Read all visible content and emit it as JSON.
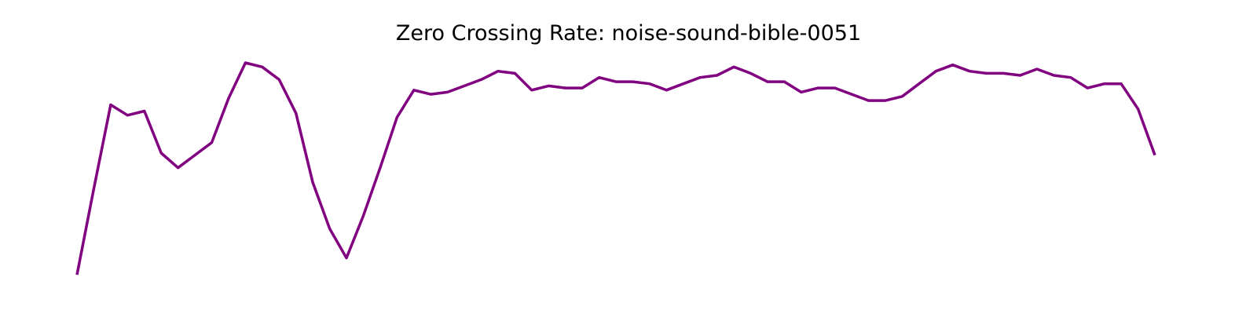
{
  "chart_data": {
    "type": "line",
    "title": "Zero Crossing Rate: noise-sound-bible-0051",
    "xlabel": "",
    "ylabel": "",
    "axes_visible": false,
    "grid": false,
    "legend": "none",
    "series": [
      {
        "color": "#800080",
        "values": [
          0.084,
          0.125,
          0.165,
          0.16,
          0.162,
          0.142,
          0.135,
          0.141,
          0.147,
          0.168,
          0.185,
          0.183,
          0.177,
          0.161,
          0.128,
          0.106,
          0.092,
          0.112,
          0.135,
          0.159,
          0.172,
          0.17,
          0.171,
          0.174,
          0.177,
          0.181,
          0.18,
          0.172,
          0.174,
          0.173,
          0.173,
          0.178,
          0.176,
          0.176,
          0.175,
          0.172,
          0.175,
          0.178,
          0.179,
          0.183,
          0.18,
          0.176,
          0.176,
          0.171,
          0.173,
          0.173,
          0.17,
          0.167,
          0.167,
          0.169,
          0.175,
          0.181,
          0.184,
          0.181,
          0.18,
          0.18,
          0.179,
          0.182,
          0.179,
          0.178,
          0.173,
          0.175,
          0.175,
          0.163,
          0.141
        ]
      }
    ]
  }
}
